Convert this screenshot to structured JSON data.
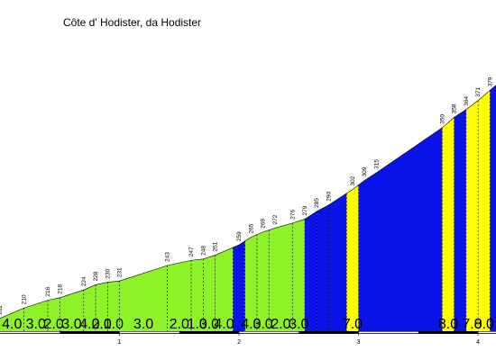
{
  "chart_data": {
    "type": "area",
    "title": "Côte d' Hodister, da Hodister",
    "xlabel": "",
    "ylabel": "",
    "x_unit": "km",
    "xlim": [
      0,
      4.15
    ],
    "ylim": [
      192,
      382
    ],
    "points": [
      {
        "x": 0.0,
        "elev": 202
      },
      {
        "x": 0.2,
        "elev": 210
      },
      {
        "x": 0.4,
        "elev": 216
      },
      {
        "x": 0.5,
        "elev": 218
      },
      {
        "x": 0.7,
        "elev": 224
      },
      {
        "x": 0.8,
        "elev": 228
      },
      {
        "x": 0.9,
        "elev": 230
      },
      {
        "x": 1.0,
        "elev": 231
      },
      {
        "x": 1.4,
        "elev": 243
      },
      {
        "x": 1.6,
        "elev": 247
      },
      {
        "x": 1.7,
        "elev": 248
      },
      {
        "x": 1.8,
        "elev": 251
      },
      {
        "x": 2.0,
        "elev": 259
      },
      {
        "x": 2.1,
        "elev": 265
      },
      {
        "x": 2.2,
        "elev": 269
      },
      {
        "x": 2.3,
        "elev": 272
      },
      {
        "x": 2.45,
        "elev": 276
      },
      {
        "x": 2.55,
        "elev": 279
      },
      {
        "x": 2.65,
        "elev": 285
      },
      {
        "x": 2.75,
        "elev": 290
      },
      {
        "x": 2.95,
        "elev": 302
      },
      {
        "x": 3.05,
        "elev": 309
      },
      {
        "x": 3.15,
        "elev": 315
      },
      {
        "x": 3.7,
        "elev": 350
      },
      {
        "x": 3.8,
        "elev": 358
      },
      {
        "x": 3.9,
        "elev": 364
      },
      {
        "x": 4.0,
        "elev": 371
      },
      {
        "x": 4.1,
        "elev": 379
      }
    ],
    "elevation_labels": [
      "202",
      "210",
      "216",
      "218",
      "224",
      "228",
      "230",
      "231",
      "243",
      "247",
      "248",
      "251",
      "259",
      "265",
      "269",
      "272",
      "276",
      "279",
      "285",
      "290",
      "302",
      "309",
      "315",
      "350",
      "358",
      "364",
      "371",
      "379"
    ],
    "segments": [
      {
        "from": 0.0,
        "to": 0.2,
        "grade": "4.0",
        "color": "#8ef229"
      },
      {
        "from": 0.2,
        "to": 0.4,
        "grade": "3.0",
        "color": "#8ef229"
      },
      {
        "from": 0.4,
        "to": 0.5,
        "grade": "2.0",
        "color": "#8ef229"
      },
      {
        "from": 0.5,
        "to": 0.7,
        "grade": "3.0",
        "color": "#8ef229"
      },
      {
        "from": 0.7,
        "to": 0.8,
        "grade": "4.0",
        "color": "#8ef229"
      },
      {
        "from": 0.8,
        "to": 0.9,
        "grade": "2.0",
        "color": "#8ef229"
      },
      {
        "from": 0.9,
        "to": 1.0,
        "grade": "1.0",
        "color": "#8ef229"
      },
      {
        "from": 1.0,
        "to": 1.4,
        "grade": "3.0",
        "color": "#8ef229"
      },
      {
        "from": 1.4,
        "to": 1.6,
        "grade": "2.0",
        "color": "#8ef229"
      },
      {
        "from": 1.6,
        "to": 1.7,
        "grade": "1.0",
        "color": "#8ef229"
      },
      {
        "from": 1.7,
        "to": 1.8,
        "grade": "3.0",
        "color": "#8ef229"
      },
      {
        "from": 1.8,
        "to": 1.95,
        "grade": "4.0",
        "color": "#8ef229"
      },
      {
        "from": 1.95,
        "to": 2.05,
        "grade": "",
        "color": "#0a14e8"
      },
      {
        "from": 2.05,
        "to": 2.15,
        "grade": "4.0",
        "color": "#8ef229"
      },
      {
        "from": 2.15,
        "to": 2.25,
        "grade": "3.0",
        "color": "#8ef229"
      },
      {
        "from": 2.25,
        "to": 2.45,
        "grade": "2.0",
        "color": "#8ef229"
      },
      {
        "from": 2.45,
        "to": 2.55,
        "grade": "3.0",
        "color": "#8ef229"
      },
      {
        "from": 2.55,
        "to": 2.65,
        "grade": "",
        "color": "#0a14e8"
      },
      {
        "from": 2.65,
        "to": 2.75,
        "grade": "",
        "color": "#0a14e8"
      },
      {
        "from": 2.75,
        "to": 2.9,
        "grade": "",
        "color": "#0a14e8"
      },
      {
        "from": 2.9,
        "to": 3.0,
        "grade": "7.0",
        "color": "#ffff00"
      },
      {
        "from": 3.0,
        "to": 3.7,
        "grade": "",
        "color": "#0a14e8"
      },
      {
        "from": 3.7,
        "to": 3.8,
        "grade": "8.0",
        "color": "#ffff00"
      },
      {
        "from": 3.8,
        "to": 3.9,
        "grade": "",
        "color": "#0a14e8"
      },
      {
        "from": 3.9,
        "to": 4.0,
        "grade": "7.0",
        "color": "#ffff00"
      },
      {
        "from": 4.0,
        "to": 4.1,
        "grade": "8.0",
        "color": "#ffff00"
      },
      {
        "from": 4.1,
        "to": 4.15,
        "grade": "",
        "color": "#0a14e8"
      }
    ],
    "km_ticks": [
      {
        "x": 1,
        "label": "1"
      },
      {
        "x": 2,
        "label": "2"
      },
      {
        "x": 3,
        "label": "3"
      },
      {
        "x": 4,
        "label": "4"
      }
    ],
    "colors": {
      "grade_easy": "#8ef229",
      "grade_medium": "#0a14e8",
      "grade_hard": "#ffff00",
      "outline": "#000000"
    }
  }
}
